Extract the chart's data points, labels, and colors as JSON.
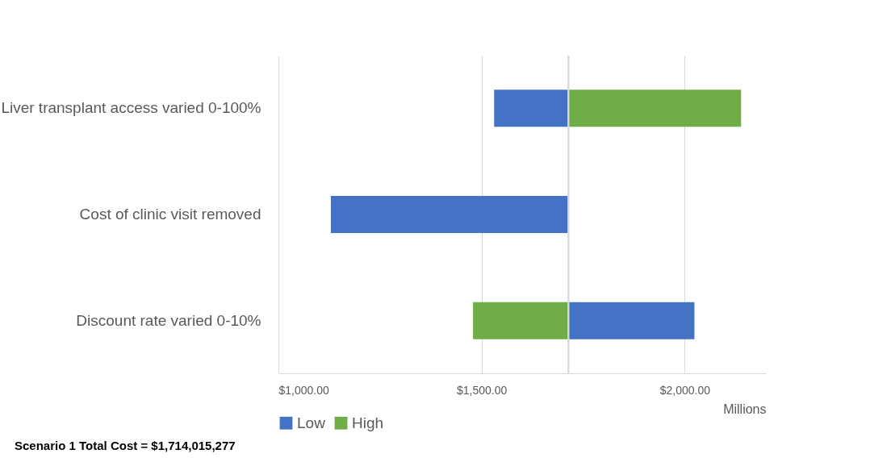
{
  "chart_data": {
    "type": "bar",
    "orientation": "horizontal",
    "categories": [
      "Liver transplant access varied 0-100%",
      "Cost of clinic visit removed",
      "Discount rate varied 0-10%"
    ],
    "series": [
      {
        "name": "Low",
        "color": "#4472c4",
        "base": [
          1531,
          1129,
          1714
        ],
        "values": [
          183,
          585,
          310
        ]
      },
      {
        "name": "High",
        "color": "#70ad47",
        "base": [
          1714,
          null,
          1479
        ],
        "values": [
          425,
          null,
          235
        ]
      }
    ],
    "xlim": [
      1000,
      2200
    ],
    "xticks": [
      {
        "value": 1000,
        "label": "$1,000.00"
      },
      {
        "value": 1500,
        "label": "$1,500.00"
      },
      {
        "value": 2000,
        "label": "$2,000.00"
      }
    ],
    "xlabel": "Millions",
    "grid": "x",
    "legend": "bottom",
    "ref_lines": [
      {
        "axis": "x",
        "value": 1714,
        "color": "#d9d9d9"
      }
    ],
    "annotations": [
      "Scenario 1 Total Cost = $1,714,015,277"
    ]
  }
}
